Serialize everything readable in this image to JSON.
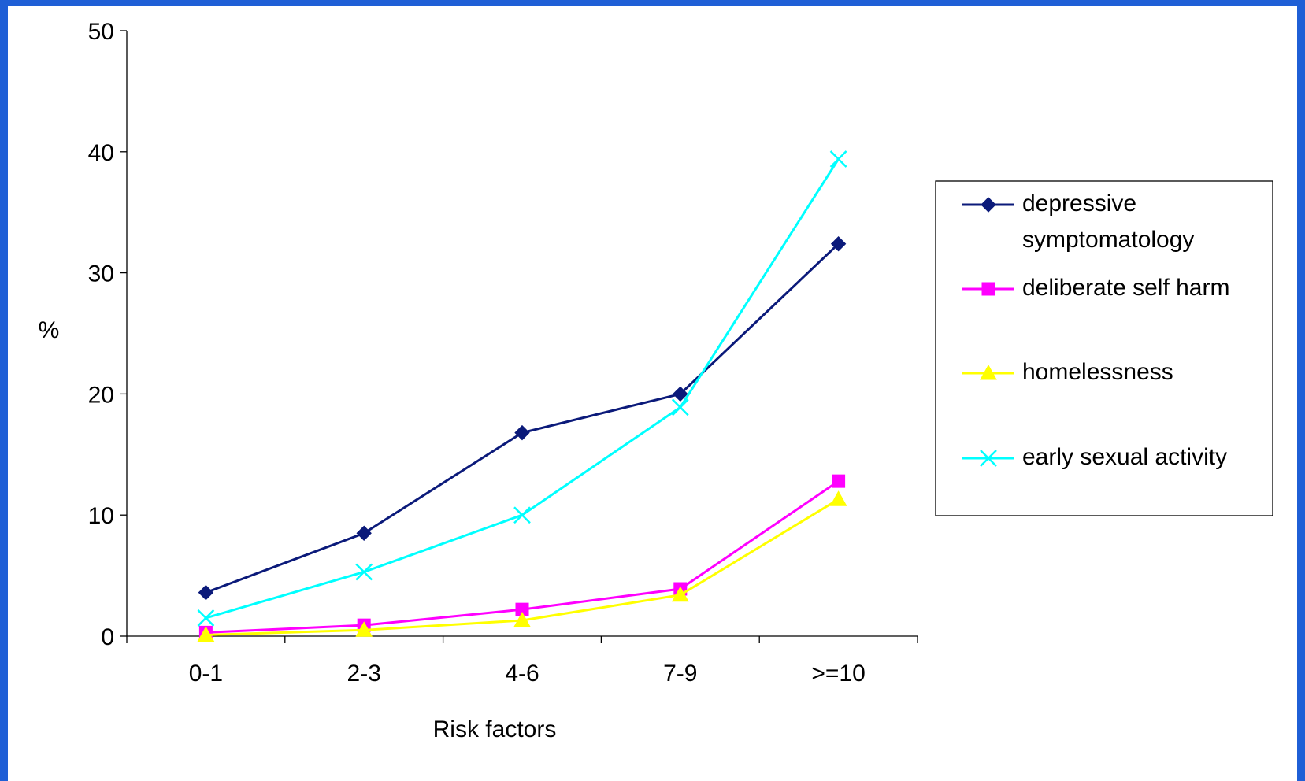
{
  "chart_data": {
    "type": "line",
    "categories": [
      "0-1",
      "2-3",
      "4-6",
      "7-9",
      ">=10"
    ],
    "series": [
      {
        "name": "depressive symptomatology",
        "values": [
          3.6,
          8.5,
          16.8,
          20.0,
          32.4
        ],
        "color": "#0b1a7a",
        "marker": "diamond"
      },
      {
        "name": "deliberate self harm",
        "values": [
          0.3,
          0.9,
          2.2,
          3.9,
          12.8
        ],
        "color": "#ff00ff",
        "marker": "square"
      },
      {
        "name": "homelessness",
        "values": [
          0.1,
          0.5,
          1.3,
          3.4,
          11.3
        ],
        "color": "#ffff00",
        "marker": "triangle"
      },
      {
        "name": "early sexual activity",
        "values": [
          1.5,
          5.3,
          10.0,
          18.9,
          39.4
        ],
        "color": "#00ffff",
        "marker": "x"
      }
    ],
    "ylim": [
      0,
      50
    ],
    "yticks": [
      0,
      10,
      20,
      30,
      40,
      50
    ],
    "xlabel": "Risk factors",
    "ylabel": "%",
    "legend": "right",
    "grid": false
  },
  "legend": {
    "depressive_line1": "depressive",
    "depressive_line2": "symptomatology"
  },
  "colors": {
    "background_border": "#1f5fd6",
    "plot_background": "#ffffff"
  }
}
